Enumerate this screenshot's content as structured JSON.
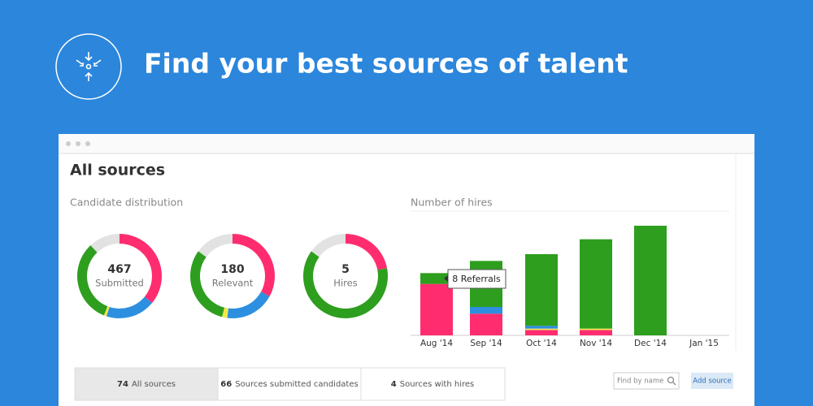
{
  "header": {
    "title": "Find your best sources of talent"
  },
  "window": {
    "heading": "All sources"
  },
  "distribution": {
    "title": "Candidate distribution",
    "donuts": [
      {
        "value": 467,
        "label": "Submitted",
        "segments": [
          {
            "color": "#ff2d6f",
            "value": 36
          },
          {
            "color": "#2d8fe0",
            "value": 19
          },
          {
            "color": "#f2e84a",
            "value": 1
          },
          {
            "color": "#2e9e1e",
            "value": 32
          },
          {
            "color": "#e2e2e2",
            "value": 12
          }
        ]
      },
      {
        "value": 180,
        "label": "Relevant",
        "segments": [
          {
            "color": "#ff2d6f",
            "value": 33
          },
          {
            "color": "#2d8fe0",
            "value": 19
          },
          {
            "color": "#f2e84a",
            "value": 2
          },
          {
            "color": "#2e9e1e",
            "value": 31
          },
          {
            "color": "#e2e2e2",
            "value": 15
          }
        ]
      },
      {
        "value": 5,
        "label": "Hires",
        "segments": [
          {
            "color": "#ff2d6f",
            "value": 22
          },
          {
            "color": "#2e9e1e",
            "value": 63
          },
          {
            "color": "#e2e2e2",
            "value": 15
          }
        ]
      }
    ]
  },
  "hires_chart": {
    "type": "bar",
    "title": "Number of hires",
    "categories": [
      "Aug '14",
      "Sep '14",
      "Oct '14",
      "Nov '14",
      "Dec '14",
      "Jan '15"
    ],
    "series": [
      {
        "color": "#ff2d6f",
        "values": [
          38,
          16,
          4,
          4,
          0,
          0
        ]
      },
      {
        "color": "#f2e84a",
        "values": [
          0,
          0,
          1,
          1,
          0,
          0
        ]
      },
      {
        "color": "#2d8fe0",
        "values": [
          0,
          5,
          2,
          0,
          0,
          0
        ]
      },
      {
        "color": "#2e9e1e",
        "values": [
          8,
          34,
          53,
          66,
          81,
          0
        ]
      }
    ],
    "ylim": [
      0,
      90
    ],
    "tooltip": "8 Referrals"
  },
  "tabs": [
    {
      "count": 74,
      "label": "All sources"
    },
    {
      "count": 66,
      "label": "Sources submitted candidates"
    },
    {
      "count": 4,
      "label": "Sources with hires"
    }
  ],
  "search": {
    "placeholder": "Find by name"
  },
  "button": {
    "label": "Add source"
  }
}
